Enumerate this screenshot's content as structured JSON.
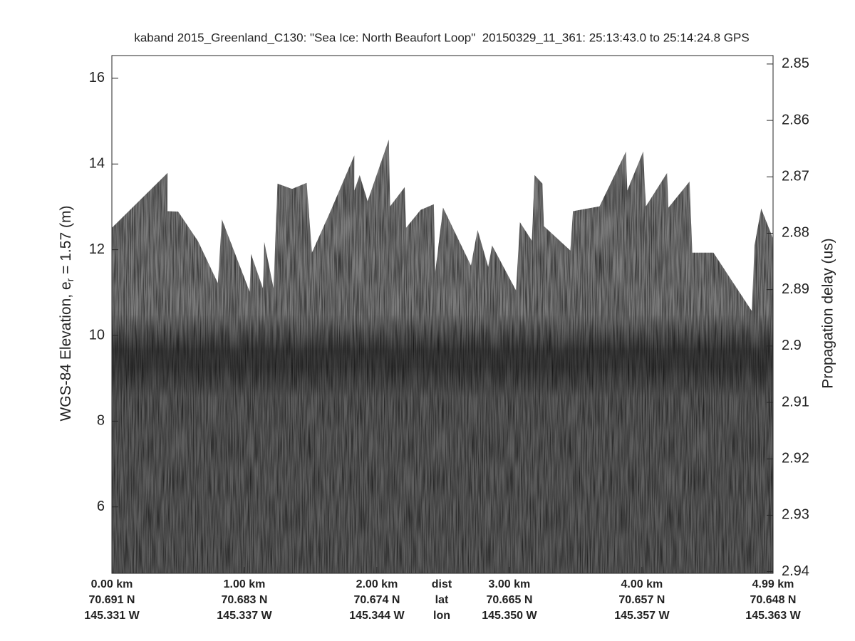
{
  "chart_data": {
    "type": "radargram",
    "title": "kaband 2015_Greenland_C130: \"Sea Ice: North Beaufort Loop\"  20150329_11_361: 25:13:43.0 to 25:14:24.8 GPS",
    "ylabel": {
      "text": "WGS-84 Elevation, e",
      "subscript": "r",
      "rest": " = 1.57 (m)"
    },
    "y2label": "Propagation delay (us)",
    "xlim": [
      0,
      4.99
    ],
    "xticks": [
      {
        "value": 0,
        "label": "0.00 km"
      },
      {
        "value": 1,
        "label": "1.00 km"
      },
      {
        "value": 2,
        "label": "2.00 km"
      },
      {
        "value": 3,
        "label": "3.00 km"
      },
      {
        "value": 4,
        "label": "4.00 km"
      },
      {
        "value": 4.99,
        "label": "4.99 km"
      }
    ],
    "lat_labels": [
      "70.691 N",
      "70.683 N",
      "70.674 N",
      "70.665 N",
      "70.657 N",
      "70.648 N"
    ],
    "lon_labels": [
      "145.331 W",
      "145.337 W",
      "145.344 W",
      "145.350 W",
      "145.357 W",
      "145.363 W"
    ],
    "row_labels": [
      "dist",
      "lat",
      "lon"
    ],
    "ylim": [
      4.45,
      16.53
    ],
    "yticks": [
      6,
      8,
      10,
      12,
      14,
      16
    ],
    "y2lim": [
      2.9403,
      2.8485
    ],
    "y2ticks": [
      2.85,
      2.86,
      2.87,
      2.88,
      2.89,
      2.9,
      2.91,
      2.92,
      2.93,
      2.94
    ],
    "surface": {
      "x": [
        0,
        0.42,
        0.42,
        0.5,
        0.65,
        0.8,
        0.83,
        1.04,
        1.05,
        1.14,
        1.15,
        1.22,
        1.25,
        1.36,
        1.47,
        1.51,
        1.65,
        1.83,
        1.83,
        1.87,
        1.93,
        2.09,
        2.1,
        2.21,
        2.22,
        2.33,
        2.43,
        2.44,
        2.5,
        2.71,
        2.76,
        2.84,
        2.87,
        3.05,
        3.08,
        3.17,
        3.19,
        3.25,
        3.26,
        3.46,
        3.48,
        3.68,
        3.88,
        3.89,
        4.01,
        4.03,
        4.19,
        4.2,
        4.36,
        4.38,
        4.54,
        4.83,
        4.85,
        4.9,
        4.99
      ],
      "values": [
        12.51,
        13.79,
        12.9,
        12.89,
        12.2,
        11.22,
        12.71,
        11.02,
        11.9,
        11.1,
        12.18,
        11.1,
        13.54,
        13.42,
        13.56,
        11.93,
        12.9,
        14.2,
        13.38,
        13.74,
        13.13,
        14.57,
        13.01,
        13.46,
        12.51,
        12.93,
        13.06,
        11.47,
        12.98,
        11.63,
        12.46,
        11.6,
        12.1,
        11.05,
        12.64,
        12.21,
        13.74,
        13.54,
        12.55,
        11.98,
        12.9,
        13.01,
        14.29,
        13.38,
        14.29,
        13.01,
        13.79,
        12.98,
        13.59,
        11.93,
        11.93,
        10.57,
        12.1,
        12.96,
        12.26
      ]
    },
    "colors": {
      "echo": "#7c7c7c",
      "layer": "#3e3e3e",
      "deep": "#5e5e5e"
    }
  }
}
